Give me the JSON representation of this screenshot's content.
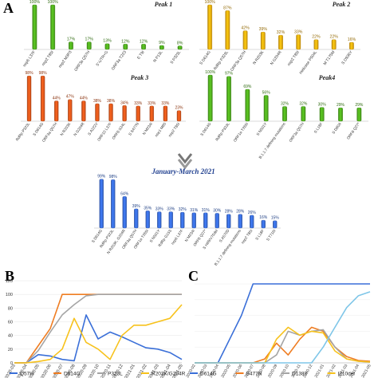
{
  "panel_labels": {
    "A": "A",
    "B": "B",
    "C": "C"
  },
  "chart_data": [
    {
      "id": "peak1",
      "type": "bar",
      "title": "Peak 1",
      "color": "#52b21e",
      "categories": [
        "nsp6 L37F",
        "nsp2 T85I",
        "nsp2 M3P3",
        "ORF3a Q57H",
        "5'-UTR+G",
        "ORF3a T223",
        "E T9I",
        "N P13L",
        "S P323L"
      ],
      "values": [
        100,
        100,
        17,
        17,
        13,
        12,
        12,
        9,
        8
      ],
      "labels": [
        "100%",
        "100%",
        "17%",
        "17%",
        "13%",
        "12%",
        "12%",
        "9%",
        "8%"
      ],
      "ylim": [
        0,
        100
      ]
    },
    {
      "id": "peak2",
      "type": "bar",
      "title": "Peak 2",
      "color": "#f6b20e",
      "categories": [
        "S D614G",
        "RdRp P323L",
        "ORF3a Q57H",
        "N R203K",
        "N G204R",
        "nsp2 T85I",
        "Helicase P504L",
        "M T175M",
        "S D936Y"
      ],
      "values": [
        100,
        87,
        42,
        39,
        32,
        33,
        22,
        22,
        16
      ],
      "labels": [
        "100%",
        "87%",
        "42%",
        "39%",
        "32%",
        "33%",
        "22%",
        "22%",
        "16%"
      ],
      "ylim": [
        0,
        100
      ]
    },
    {
      "id": "peak3",
      "type": "bar",
      "title": "Peak 3",
      "color": "#e8591b",
      "categories": [
        "RdRp P323L",
        "S D614G",
        "ORF3a Q57H",
        "N R203K",
        "N G204R",
        "S A222V",
        "ORF10 L37F",
        "ORF8 S24L",
        "S S477N",
        "N M234I",
        "nsp1 M85",
        "nsp2 T85I"
      ],
      "values": [
        98,
        98,
        44,
        47,
        44,
        38,
        38,
        34,
        33,
        33,
        33,
        23
      ],
      "labels": [
        "98%",
        "98%",
        "44%",
        "47%",
        "44%",
        "38%",
        "38%",
        "34%",
        "33%",
        "33%",
        "33%",
        "23%"
      ],
      "ylim": [
        0,
        100
      ]
    },
    {
      "id": "peak4",
      "type": "bar",
      "title": "Peak4",
      "color": "#52b21e",
      "categories": [
        "S D614G",
        "RdRp P323L",
        "ORF1a T265I",
        "S N501Y",
        "B.1.1.7 defining mutations",
        "ORF3a Q57H",
        "S L18F",
        "S D80A",
        "ORF8 Q27*"
      ],
      "values": [
        100,
        97,
        69,
        56,
        32,
        32,
        30,
        29,
        29
      ],
      "labels": [
        "100%",
        "97%",
        "69%",
        "56%",
        "32%",
        "32%",
        "30%",
        "29%",
        "29%"
      ],
      "ylim": [
        0,
        100
      ]
    },
    {
      "id": "jan_mar_2021",
      "type": "bar",
      "title": "January-March 2021",
      "color": "#3a6fe0",
      "categories": [
        "S D614G",
        "RdRp P323L",
        "N R203K, G204R",
        "ORF3a Q57H",
        "ORF1a T265I",
        "S N501Y",
        "RdRp G15S",
        "nsp6 L37F",
        "N M234I",
        "ORF8 Q27*",
        "S H69/V70del",
        "S A570D",
        "B.1.1.7 defining mutations",
        "nsp2 T85I",
        "S L18F",
        "S T716I"
      ],
      "values": [
        99,
        98,
        64,
        39,
        35,
        33,
        33,
        32,
        31,
        31,
        30,
        28,
        28,
        26,
        16,
        15
      ],
      "labels": [
        "99%",
        "98%",
        "64%",
        "39%",
        "35%",
        "33%",
        "33%",
        "32%",
        "31%",
        "31%",
        "30%",
        "28%",
        "28%",
        "26%",
        "16%",
        "15%"
      ],
      "ylim": [
        0,
        100
      ]
    },
    {
      "id": "panelB",
      "type": "line",
      "x": [
        "2020-03",
        "2020-04",
        "2020-05",
        "2020-06",
        "2020-07",
        "2020-08",
        "2020-09",
        "2020-10",
        "2020-11",
        "2020-12",
        "2021-01",
        "2021-02",
        "2021-03",
        "2021-04",
        "2021-05"
      ],
      "yticks": [
        0,
        20,
        40,
        60,
        80,
        100,
        120
      ],
      "ylim": [
        0,
        120
      ],
      "series": [
        {
          "name": "Q57H",
          "color": "#3a6fd8",
          "values": [
            0,
            0,
            12,
            10,
            5,
            3,
            70,
            35,
            45,
            38,
            30,
            22,
            20,
            15,
            5
          ]
        },
        {
          "name": "D614G",
          "color": "#ef7d22",
          "values": [
            0,
            0,
            25,
            50,
            100,
            100,
            100,
            100,
            100,
            100,
            100,
            100,
            100,
            100,
            100
          ]
        },
        {
          "name": "P323L",
          "color": "#a5a5a5",
          "values": [
            0,
            0,
            18,
            45,
            70,
            85,
            98,
            100,
            100,
            100,
            100,
            100,
            100,
            100,
            100
          ]
        },
        {
          "name": "R203K/G204R",
          "color": "#f7c21c",
          "values": [
            0,
            0,
            2,
            5,
            20,
            65,
            30,
            20,
            5,
            40,
            55,
            55,
            60,
            65,
            85
          ]
        }
      ]
    },
    {
      "id": "panelC",
      "type": "line",
      "x": [
        "2020-02",
        "2020-03",
        "2020-04",
        "2020-05",
        "2020-06",
        "2020-07",
        "2020-08",
        "2020-09",
        "2020-10",
        "2020-11",
        "2020-12",
        "2021-01",
        "2021-02",
        "2021-03",
        "2021-04",
        "2021-05"
      ],
      "ylim": [
        0,
        100
      ],
      "series": [
        {
          "name": "D614G",
          "color": "#3a6fd8",
          "values": [
            0,
            0,
            0,
            30,
            60,
            100,
            100,
            100,
            100,
            100,
            100,
            100,
            100,
            100,
            100,
            100
          ]
        },
        {
          "name": "S477N",
          "color": "#ef7d22",
          "values": [
            0,
            0,
            0,
            0,
            0,
            0,
            5,
            25,
            10,
            30,
            45,
            40,
            20,
            8,
            3,
            2
          ]
        },
        {
          "name": "D138Y",
          "color": "#a5a5a5",
          "values": [
            0,
            0,
            0,
            0,
            0,
            0,
            0,
            10,
            40,
            35,
            40,
            42,
            20,
            5,
            2,
            1
          ]
        },
        {
          "name": "I210del",
          "color": "#f7c21c",
          "values": [
            0,
            0,
            0,
            0,
            0,
            0,
            0,
            30,
            45,
            35,
            40,
            38,
            15,
            5,
            2,
            1
          ]
        },
        {
          "name": "",
          "color": "#7fc6e8",
          "values": [
            0,
            0,
            0,
            0,
            0,
            0,
            0,
            0,
            0,
            0,
            0,
            20,
            45,
            70,
            85,
            90
          ]
        }
      ]
    }
  ]
}
